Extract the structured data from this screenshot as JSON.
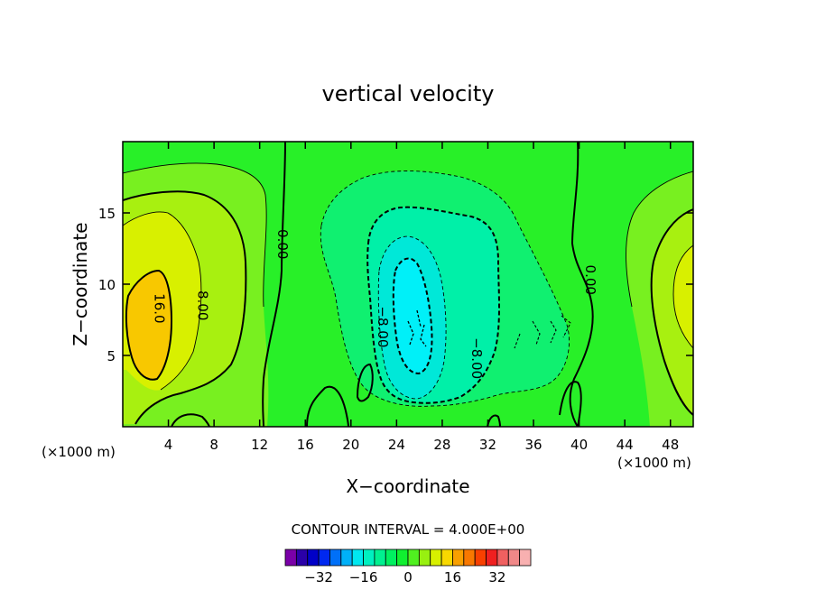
{
  "chart_data": {
    "type": "heatmap",
    "title": "vertical velocity",
    "xlabel": "X−coordinate",
    "ylabel": "Z−coordinate",
    "x_unit_left": "(×1000 m)",
    "x_unit_right": "(×1000 m)",
    "xlim": [
      0,
      50
    ],
    "ylim": [
      0,
      20
    ],
    "x_ticks": [
      4,
      8,
      12,
      16,
      20,
      24,
      28,
      32,
      36,
      40,
      44,
      48
    ],
    "y_ticks": [
      5,
      10,
      15
    ],
    "contour_interval_text": "CONTOUR INTERVAL = 4.000E+00",
    "contour_interval": 4,
    "contour_labels": [
      {
        "text": "16.0",
        "x": 3.2,
        "y": 8.3
      },
      {
        "text": "8.00",
        "x": 7.0,
        "y": 8.5
      },
      {
        "text": "0.00",
        "x": 14.0,
        "y": 12.8
      },
      {
        "text": "−8.00",
        "x": 22.8,
        "y": 7.0
      },
      {
        "text": "−8.00",
        "x": 31.0,
        "y": 4.8
      },
      {
        "text": "0.00",
        "x": 41.0,
        "y": 10.3
      }
    ],
    "colorbar": {
      "colors": [
        "#7a00a8",
        "#2a00a8",
        "#0000c8",
        "#0028f0",
        "#0070f8",
        "#00b0f8",
        "#00e8f0",
        "#00f0c0",
        "#00f090",
        "#00f060",
        "#10f030",
        "#50f020",
        "#98f010",
        "#d8f000",
        "#f8d800",
        "#f8a000",
        "#f87800",
        "#f84000",
        "#f02020",
        "#f06060",
        "#f08888",
        "#f8b0b0"
      ],
      "tick_labels": [
        "−32",
        "−16",
        "0",
        "16",
        "32"
      ],
      "tick_values": [
        -32,
        -16,
        0,
        16,
        32
      ]
    },
    "grid": false
  }
}
